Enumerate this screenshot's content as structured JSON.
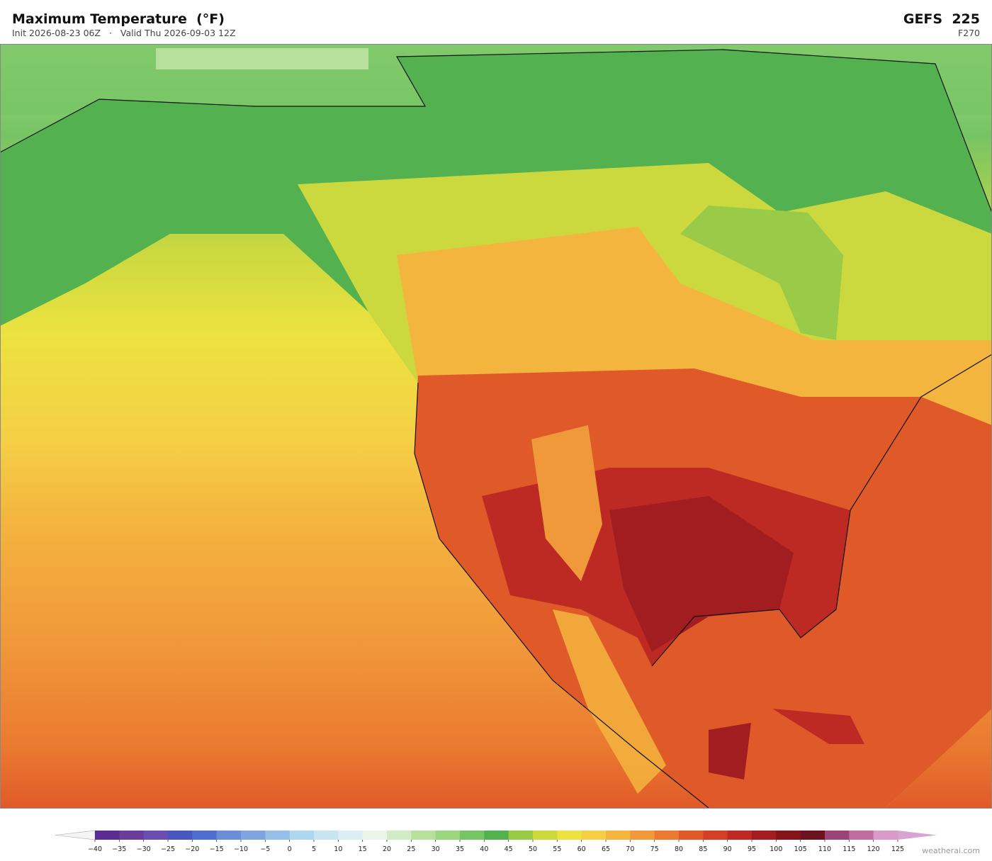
{
  "header": {
    "title": "Maximum Temperature  (°F)",
    "init": "Init 2026-08-23 06Z",
    "separator": "·",
    "valid": "Valid Thu 2026-09-03 12Z",
    "model": "GEFS  225",
    "forecast_hour": "F270"
  },
  "colorbar": {
    "ticks": [
      {
        "value": -40,
        "label": "−40"
      },
      {
        "value": -35,
        "label": "−35"
      },
      {
        "value": -30,
        "label": "−30"
      },
      {
        "value": -25,
        "label": "−25"
      },
      {
        "value": -20,
        "label": "−20"
      },
      {
        "value": -15,
        "label": "−15"
      },
      {
        "value": -10,
        "label": "−10"
      },
      {
        "value": -5,
        "label": "−5"
      },
      0,
      5,
      10,
      15,
      20,
      25,
      30,
      35,
      40,
      45,
      50,
      55,
      60,
      65,
      70,
      75,
      80,
      85,
      90,
      95,
      100,
      105,
      110,
      115,
      120,
      125
    ],
    "colors": [
      "#5b2c8f",
      "#6a3d9a",
      "#6b4fb0",
      "#4a56c0",
      "#4f6fd0",
      "#6a8fd6",
      "#7fa6dc",
      "#95bfe4",
      "#aed6ec",
      "#c7e4f0",
      "#ddeef2",
      "#e8f5e8",
      "#d1ecc4",
      "#b6e09b",
      "#99d67d",
      "#76c464",
      "#54b150",
      "#99cb48",
      "#cbd93f",
      "#ece240",
      "#f5cf45",
      "#f4b53e",
      "#f0993a",
      "#ea7a30",
      "#e05a29",
      "#d43f28",
      "#bd2a24",
      "#a11d1f",
      "#861519",
      "#6d1320",
      "#9b4477",
      "#c06ea0",
      "#d89cc8"
    ],
    "under_color": "#f4f4f4",
    "over_color": "#d8a4d4"
  },
  "watermark": "weatherai.com"
}
